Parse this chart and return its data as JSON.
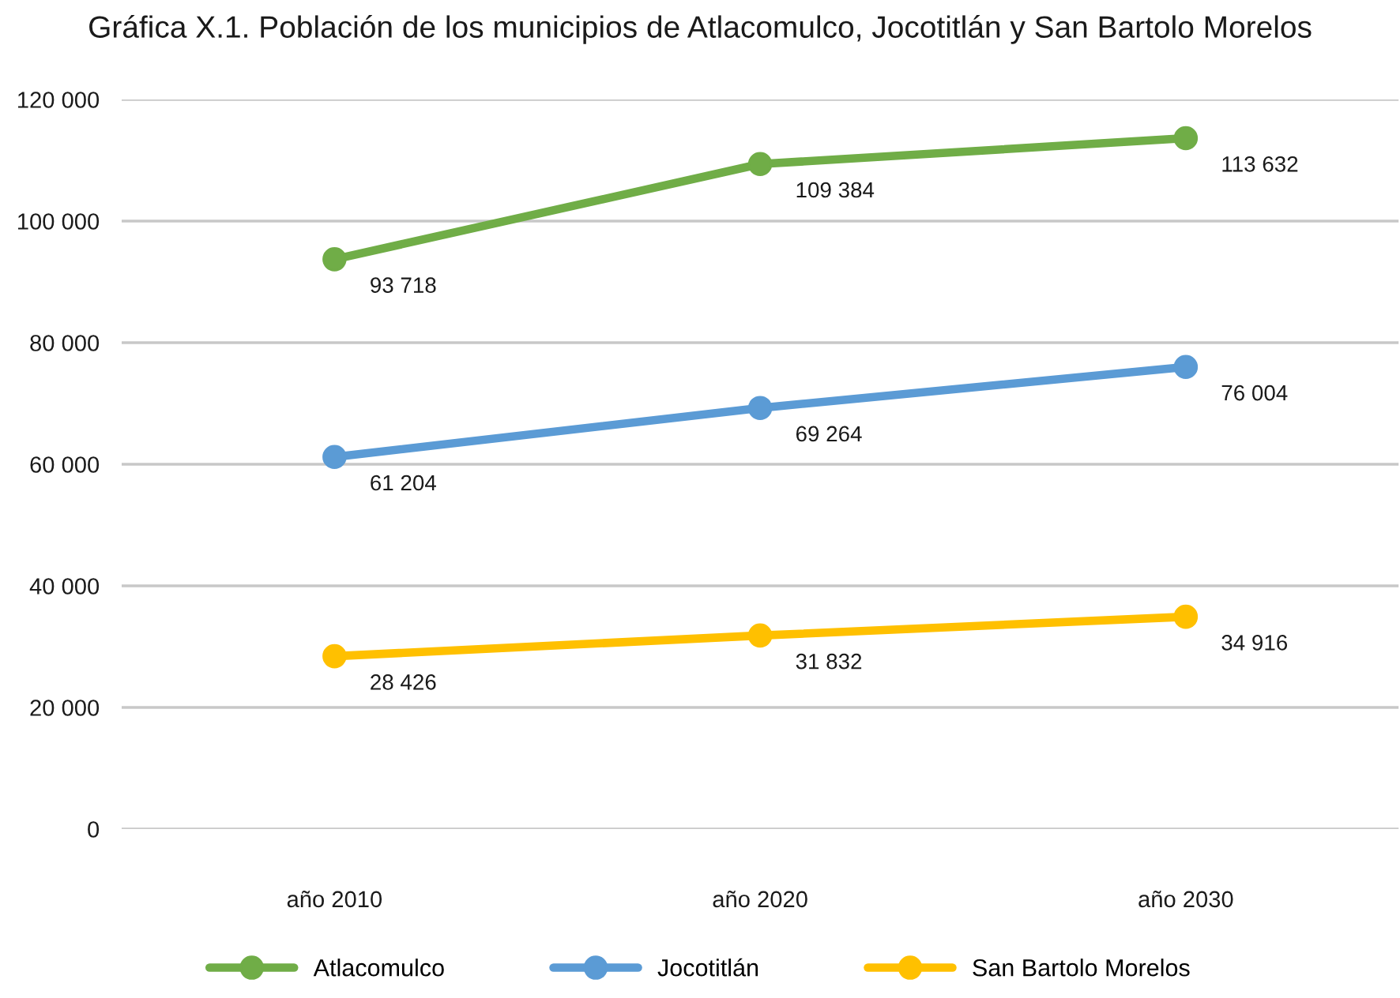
{
  "chart_data": {
    "type": "line",
    "title": "Gráfica X.1. Población de los municipios de Atlacomulco, Jocotitlán y San Bartolo Morelos",
    "categories": [
      "año 2010",
      "año 2020",
      "año 2030"
    ],
    "series": [
      {
        "name": "Atlacomulco",
        "color": "#70ad47",
        "values": [
          93718,
          109384,
          113632
        ],
        "value_labels": [
          "93 718",
          "109 384",
          "113 632"
        ]
      },
      {
        "name": "Jocotitlán",
        "color": "#5b9bd5",
        "values": [
          61204,
          69264,
          76004
        ],
        "value_labels": [
          "61 204",
          "69 264",
          "76 004"
        ]
      },
      {
        "name": "San Bartolo Morelos",
        "color": "#ffc000",
        "values": [
          28426,
          31832,
          34916
        ],
        "value_labels": [
          "28 426",
          "31 832",
          "34 916"
        ]
      }
    ],
    "ylim": [
      0,
      120000
    ],
    "yticks": [
      0,
      {
        "value": 20000,
        "label": "20 000"
      },
      {
        "value": 40000,
        "label": "40 000"
      },
      {
        "value": 60000,
        "label": "60 000"
      },
      {
        "value": 80000,
        "label": "80 000"
      },
      {
        "value": 100000,
        "label": "100 000"
      },
      {
        "value": 120000,
        "label": "120 000"
      }
    ],
    "grid": "y",
    "legend": "bottom",
    "marker": "circle",
    "line_style": "solid"
  }
}
